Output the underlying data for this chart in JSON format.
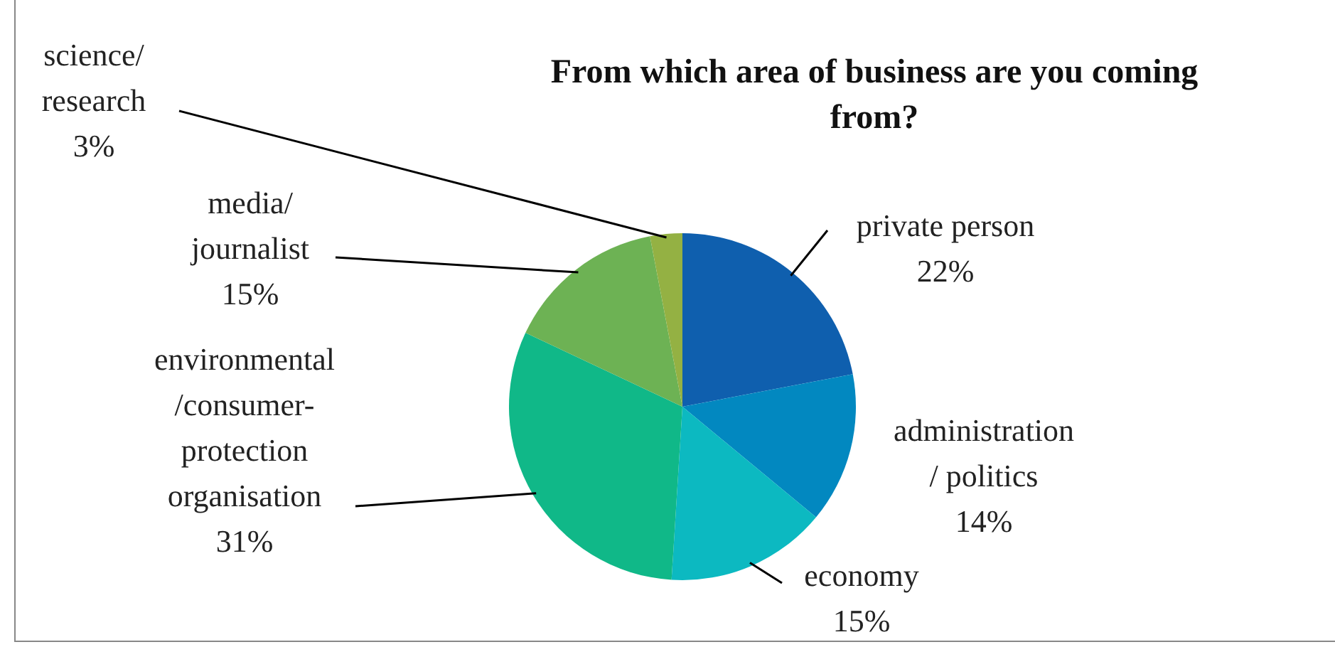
{
  "chart_data": {
    "type": "pie",
    "title": "From which area of business are you coming from?",
    "categories": [
      "private person",
      "administration\n/ politics",
      "economy",
      "environmental\n/consumer-\nprotection\norganisation",
      "media/\njournalist",
      "science/\nresearch"
    ],
    "values": [
      22,
      14,
      15,
      31,
      15,
      3
    ],
    "value_labels": [
      "22%",
      "14%",
      "15%",
      "31%",
      "15%",
      "3%"
    ],
    "colors": [
      "#0f5fae",
      "#0288c0",
      "#0cb9c1",
      "#10b888",
      "#6db254",
      "#94b143"
    ]
  }
}
